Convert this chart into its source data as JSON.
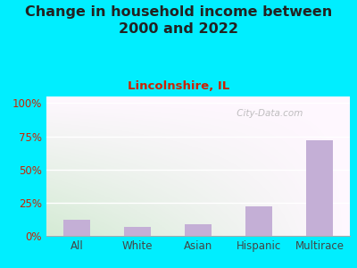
{
  "title": "Change in household income between\n2000 and 2022",
  "subtitle": "Lincolnshire, IL",
  "categories": [
    "All",
    "White",
    "Asian",
    "Hispanic",
    "Multirace"
  ],
  "values": [
    12,
    7,
    9,
    22,
    72
  ],
  "bar_color": "#c4afd6",
  "title_fontsize": 11.5,
  "subtitle_fontsize": 9.5,
  "tick_fontsize": 8.5,
  "ytick_labels": [
    "0%",
    "25%",
    "50%",
    "75%",
    "100%"
  ],
  "ytick_values": [
    0,
    25,
    50,
    75,
    100
  ],
  "ylim": [
    0,
    105
  ],
  "background_outer": "#00eeff",
  "background_inner_topleft": "#d8edd8",
  "background_inner_topright": "#f5f5f5",
  "background_inner_bottomleft": "#c8e8c8",
  "background_inner_bottomright": "#f0f0f0",
  "watermark": " City-Data.com",
  "title_color": "#222222",
  "subtitle_color": "#cc2200",
  "ytick_color": "#cc2200",
  "xtick_color": "#444444",
  "gridline_color": "#ffffff"
}
